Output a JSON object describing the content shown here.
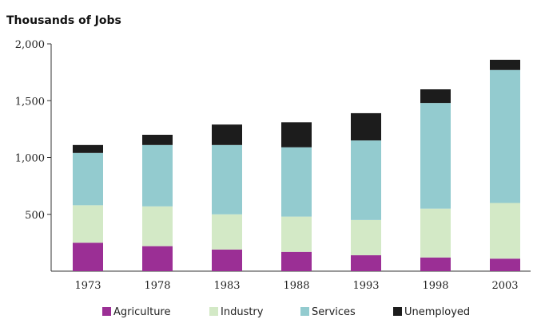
{
  "chart_data": {
    "type": "bar",
    "stacked": true,
    "title": "Thousands of Jobs",
    "xlabel": "",
    "ylabel": "",
    "categories": [
      "1973",
      "1978",
      "1983",
      "1988",
      "1993",
      "1998",
      "2003"
    ],
    "ylim": [
      0,
      2000
    ],
    "yticks": [
      500,
      1000,
      1500,
      2000
    ],
    "ytick_labels": [
      "500",
      "1,000",
      "1,500",
      "2,000"
    ],
    "grid": false,
    "legend_position": "bottom",
    "series": [
      {
        "name": "Agriculture",
        "color": "#9b2f95",
        "values": [
          250,
          220,
          190,
          170,
          140,
          120,
          110
        ]
      },
      {
        "name": "Industry",
        "color": "#d3e9c6",
        "values": [
          330,
          350,
          310,
          310,
          310,
          430,
          490
        ]
      },
      {
        "name": "Services",
        "color": "#93cbcf",
        "values": [
          460,
          540,
          610,
          610,
          700,
          930,
          1170
        ]
      },
      {
        "name": "Unemployed",
        "color": "#1c1c1c",
        "values": [
          70,
          90,
          180,
          220,
          240,
          120,
          90
        ]
      }
    ]
  }
}
